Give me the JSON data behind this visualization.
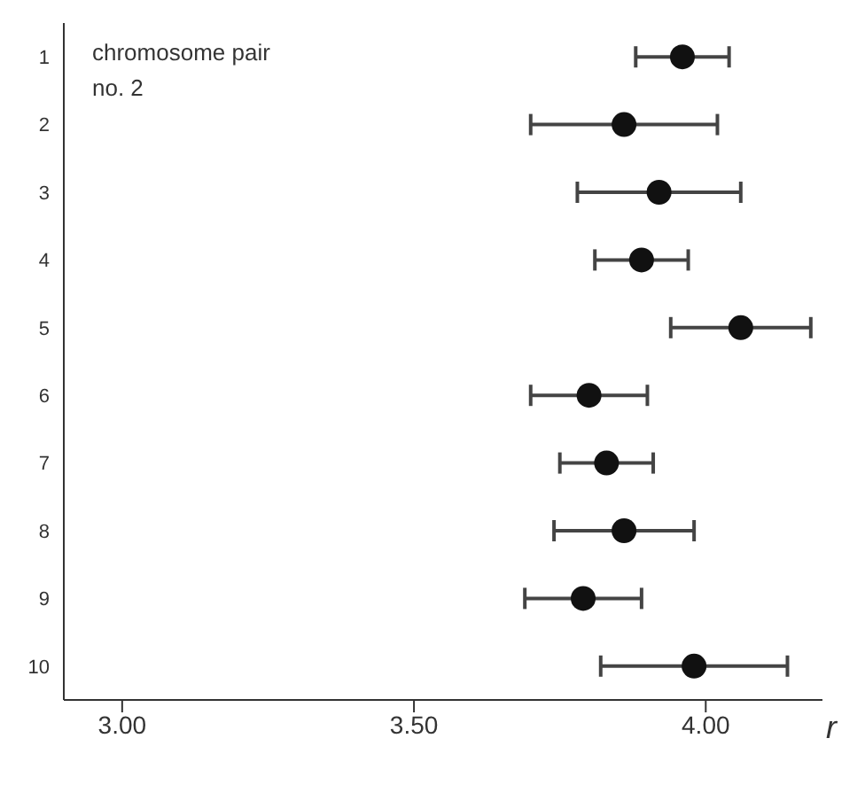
{
  "chart_data": {
    "type": "scatter",
    "orientation": "horizontal",
    "title": "chromosome pair no. 2",
    "xlabel": "r",
    "categories": [
      "1",
      "2",
      "3",
      "4",
      "5",
      "6",
      "7",
      "8",
      "9",
      "10"
    ],
    "values": [
      3.96,
      3.86,
      3.92,
      3.89,
      4.06,
      3.8,
      3.83,
      3.86,
      3.79,
      3.98
    ],
    "errors": [
      [
        3.88,
        4.04
      ],
      [
        3.7,
        4.02
      ],
      [
        3.78,
        4.06
      ],
      [
        3.81,
        3.97
      ],
      [
        3.94,
        4.18
      ],
      [
        3.7,
        3.9
      ],
      [
        3.75,
        3.91
      ],
      [
        3.74,
        3.98
      ],
      [
        3.69,
        3.89
      ],
      [
        3.82,
        4.14
      ]
    ],
    "color": "#111111",
    "marker": "circle",
    "xlim": [
      2.9,
      4.2
    ],
    "xticks": [
      {
        "value": 3.0,
        "label": "3.00"
      },
      {
        "value": 3.5,
        "label": "3.50"
      },
      {
        "value": 4.0,
        "label": "4.00"
      }
    ]
  }
}
